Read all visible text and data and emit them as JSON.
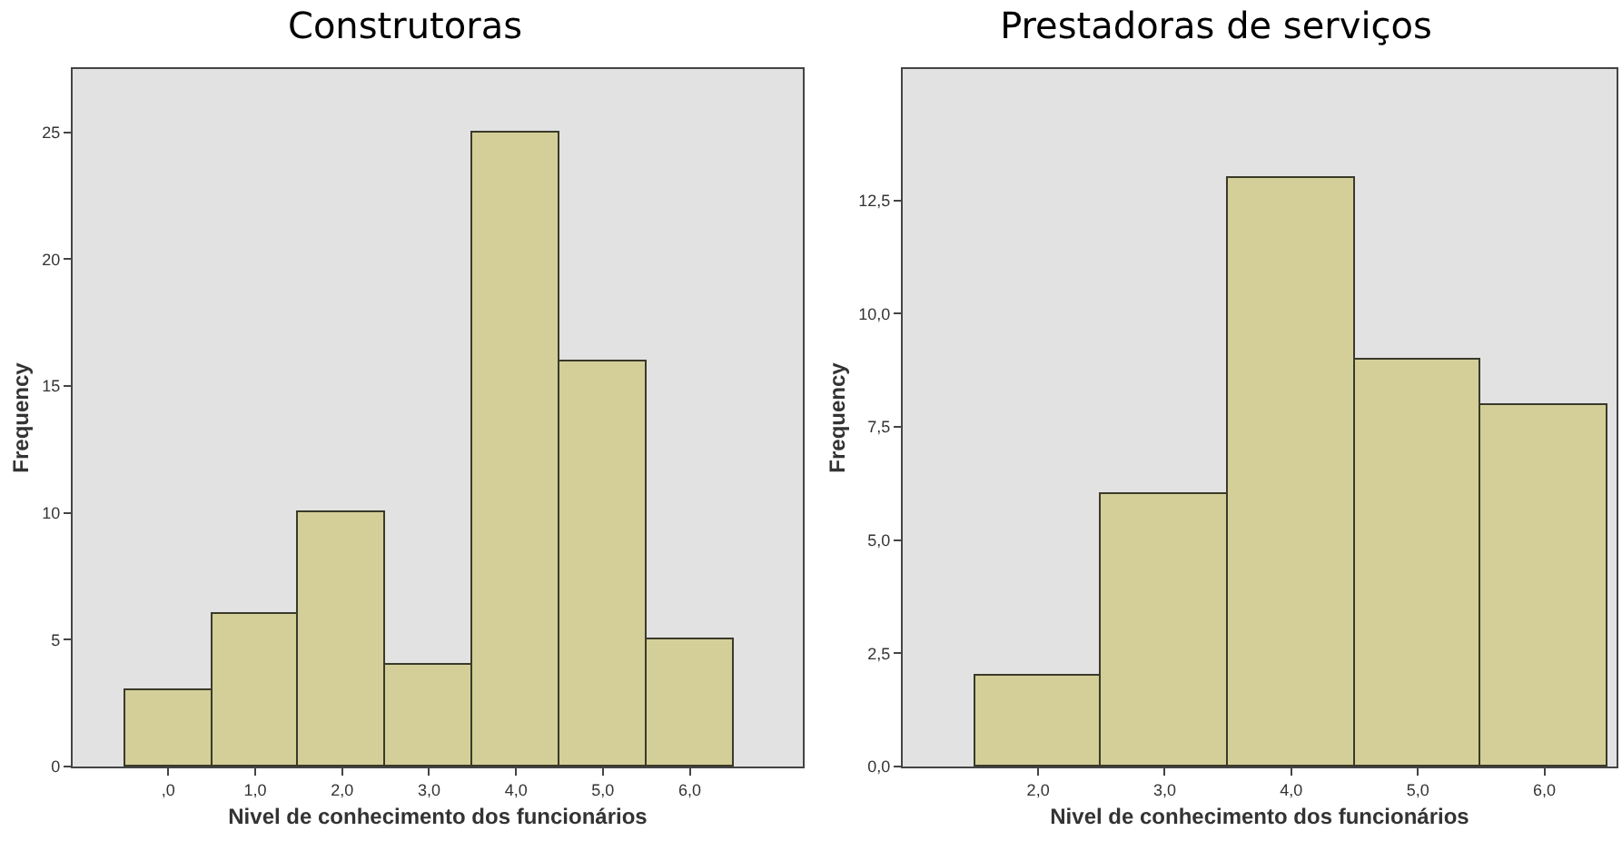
{
  "chart_data": [
    {
      "type": "histogram",
      "title": "Construtoras",
      "xlabel": "Nivel de conhecimento dos funcionários",
      "ylabel": "Frequency",
      "bins": [
        -0.5,
        0.5,
        1.5,
        2.5,
        3.5,
        4.5,
        5.5,
        6.5
      ],
      "values": [
        3,
        6,
        10,
        4,
        25,
        16,
        5
      ],
      "color": "#d4cf98",
      "xlim": [
        -1.1,
        7.3
      ],
      "xticks": [
        {
          "value": 0,
          "label": ",0"
        },
        {
          "value": 1,
          "label": "1,0"
        },
        {
          "value": 2,
          "label": "2,0"
        },
        {
          "value": 3,
          "label": "3,0"
        },
        {
          "value": 4,
          "label": "4,0"
        },
        {
          "value": 5,
          "label": "5,0"
        },
        {
          "value": 6,
          "label": "6,0"
        }
      ],
      "ylim": [
        0,
        27.5
      ],
      "yticks": [
        0,
        5,
        10,
        15,
        20,
        25
      ],
      "grid": false
    },
    {
      "type": "histogram",
      "title": "Prestadoras de serviços",
      "xlabel": "Nivel de conhecimento dos funcionários",
      "ylabel": "Frequency",
      "bins": [
        1.5,
        2.5,
        3.5,
        4.5,
        5.5,
        6.5
      ],
      "values": [
        2,
        6,
        13,
        9,
        8
      ],
      "color": "#d4cf98",
      "xlim": [
        0.93,
        6.57
      ],
      "xticks": [
        {
          "value": 2,
          "label": "2,0"
        },
        {
          "value": 3,
          "label": "3,0"
        },
        {
          "value": 4,
          "label": "4,0"
        },
        {
          "value": 5,
          "label": "5,0"
        },
        {
          "value": 6,
          "label": "6,0"
        }
      ],
      "ylim": [
        0,
        15.4
      ],
      "yticks": [
        {
          "value": 0,
          "label": "0,0"
        },
        {
          "value": 2.5,
          "label": "2,5"
        },
        {
          "value": 5,
          "label": "5,0"
        },
        {
          "value": 7.5,
          "label": "7,5"
        },
        {
          "value": 10,
          "label": "10,0"
        },
        {
          "value": 12.5,
          "label": "12,5"
        }
      ],
      "grid": false
    }
  ]
}
